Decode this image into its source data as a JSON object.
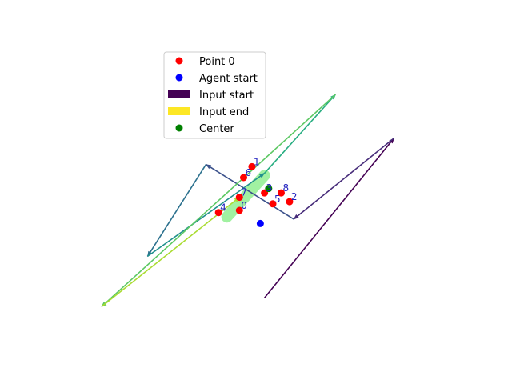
{
  "chart_data": {
    "type": "scatter",
    "title": "",
    "xlabel": "",
    "ylabel": "",
    "axes_visible": false,
    "xlim": [
      -0.2,
      9.3
    ],
    "ylim": [
      -2.0,
      11.5
    ],
    "legend": {
      "placement": "top-left",
      "entries": [
        {
          "label": "Point 0",
          "marker": "circle",
          "color": "#ff0000"
        },
        {
          "label": "Agent start",
          "marker": "circle",
          "color": "#0000ff"
        },
        {
          "label": "Input start",
          "marker": "rect",
          "color": "#440154"
        },
        {
          "label": "Input end",
          "marker": "rect",
          "color": "#fde725"
        },
        {
          "label": "Center",
          "marker": "circle",
          "color": "#008000"
        }
      ]
    },
    "points": [
      {
        "label": "0",
        "x": 4.0,
        "y": 4.0
      },
      {
        "label": "1",
        "x": 4.3,
        "y": 6.0
      },
      {
        "label": "2",
        "x": 5.2,
        "y": 4.4
      },
      {
        "label": "3",
        "x": 4.6,
        "y": 4.8
      },
      {
        "label": "4",
        "x": 3.5,
        "y": 3.9
      },
      {
        "label": "5",
        "x": 4.8,
        "y": 4.3
      },
      {
        "label": "6",
        "x": 4.1,
        "y": 5.5
      },
      {
        "label": "7",
        "x": 4.0,
        "y": 4.6
      },
      {
        "label": "8",
        "x": 5.0,
        "y": 4.8
      }
    ],
    "agent_start": {
      "x": 4.5,
      "y": 3.4
    },
    "center": {
      "x": 4.7,
      "y": 5.0
    },
    "path": [
      {
        "x": 4.6,
        "y": 0.0
      },
      {
        "x": 7.7,
        "y": 7.3
      },
      {
        "x": 5.3,
        "y": 3.6
      },
      {
        "x": 3.2,
        "y": 6.1
      },
      {
        "x": 1.8,
        "y": 1.9
      },
      {
        "x": 4.6,
        "y": 5.7
      },
      {
        "x": 6.3,
        "y": 9.3
      },
      {
        "x": 0.7,
        "y": -0.4
      },
      {
        "x": 4.0,
        "y": 4.6
      }
    ],
    "path_colormap": [
      "#440154",
      "#472c7a",
      "#3b518b",
      "#2c718e",
      "#21908d",
      "#27ad81",
      "#5cc863",
      "#aadc32",
      "#fde725"
    ],
    "highlight_color": "#90ee90"
  }
}
